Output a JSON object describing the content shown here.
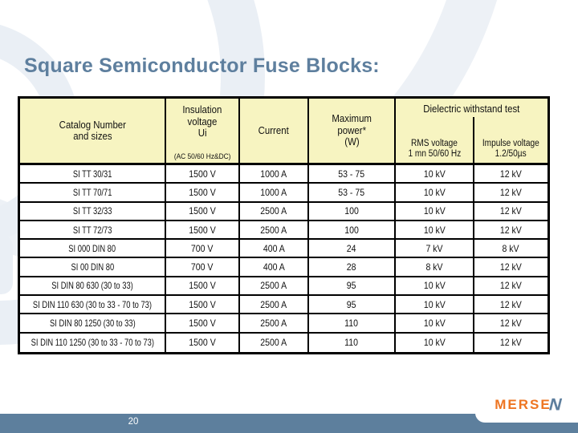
{
  "slide": {
    "title": "Square Semiconductor Fuse Blocks:"
  },
  "table": {
    "header": {
      "catalog": {
        "line1": "Catalog Number",
        "line2": "and sizes"
      },
      "insulation": {
        "line1": "Insulation",
        "line2": "voltage",
        "line3": "Ui",
        "note": "(AC 50/60 Hz&DC)"
      },
      "current": {
        "line1": "Current"
      },
      "power": {
        "line1": "Maximum",
        "line2": "power*",
        "line3": "(W)"
      },
      "dielectric": {
        "title": "Dielectric withstand test",
        "rms": {
          "line1": "RMS voltage",
          "line2": "1 mn 50/60 Hz"
        },
        "impulse": {
          "line1": "Impulse voltage",
          "line2": "1.2/50µs"
        }
      }
    },
    "rows": [
      [
        "SI TT 30/31",
        "1500 V",
        "1000 A",
        "53 - 75",
        "10 kV",
        "12 kV"
      ],
      [
        "SI TT 70/71",
        "1500 V",
        "1000 A",
        "53 - 75",
        "10 kV",
        "12 kV"
      ],
      [
        "SI TT 32/33",
        "1500 V",
        "2500 A",
        "100",
        "10 kV",
        "12 kV"
      ],
      [
        "SI TT 72/73",
        "1500 V",
        "2500 A",
        "100",
        "10 kV",
        "12 kV"
      ],
      [
        "SI 000 DIN 80",
        "700 V",
        "400 A",
        "24",
        "7 kV",
        "8 kV"
      ],
      [
        "SI 00 DIN 80",
        "700 V",
        "400 A",
        "28",
        "8 kV",
        "12 kV"
      ],
      [
        "SI DIN 80 630 (30 to 33)",
        "1500 V",
        "2500 A",
        "95",
        "10 kV",
        "12 kV"
      ],
      [
        "SI DIN 110 630 (30 to 33 - 70 to 73)",
        "1500 V",
        "2500 A",
        "95",
        "10 kV",
        "12 kV"
      ],
      [
        "SI DIN 80 1250 (30 to 33)",
        "1500 V",
        "2500 A",
        "110",
        "10 kV",
        "12 kV"
      ],
      [
        "SI DIN 110 1250 (30 to 33 - 70 to 73)",
        "1500 V",
        "2500 A",
        "110",
        "10 kV",
        "12 kV"
      ]
    ]
  },
  "footer": {
    "page_number": "20",
    "logo": {
      "prefix": "MERSE",
      "suffix": "N"
    }
  },
  "colors": {
    "title_text": "#5E7F9E",
    "table_header_bg": "#F7F4C1",
    "table_border": "#000000",
    "footer_bar": "#5D7F9D",
    "logo_orange": "#EE7522",
    "logo_blue": "#5E7F9E",
    "watermark": "#EAEFF5",
    "page_number_text": "#FFFFFF"
  }
}
